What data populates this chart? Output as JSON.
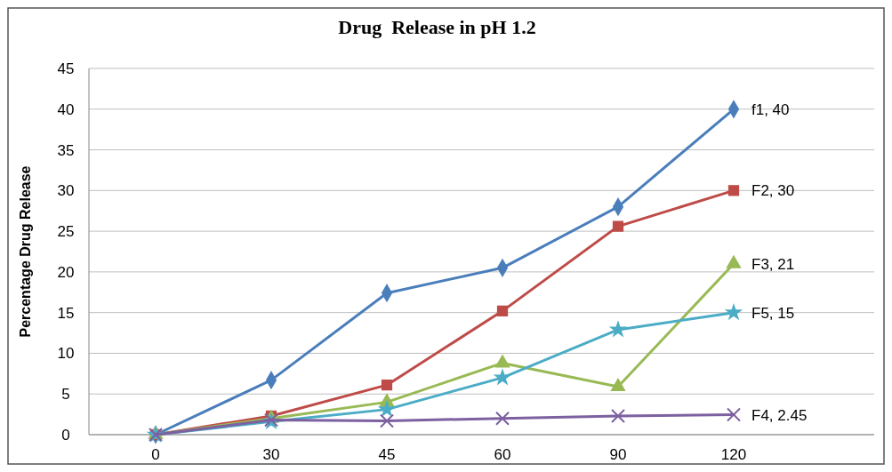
{
  "chart_data": {
    "type": "line",
    "title": "Drug  Release in pH 1.2",
    "ylabel": "Percentage Drug Release",
    "categories": [
      "0",
      "30",
      "45",
      "60",
      "90",
      "120"
    ],
    "ylim": [
      0,
      45
    ],
    "yticks": [
      0,
      5,
      10,
      15,
      20,
      25,
      30,
      35,
      40,
      45
    ],
    "grid": "y",
    "series": [
      {
        "color": "#4a7ebb",
        "marker": "diamond",
        "values": [
          0,
          6.7,
          17.4,
          20.5,
          28,
          40
        ],
        "value_labels": [
          null,
          null,
          null,
          null,
          null,
          "f1, 40"
        ]
      },
      {
        "color": "#be4b48",
        "marker": "square",
        "values": [
          0,
          2.3,
          6.1,
          15.2,
          25.6,
          30
        ],
        "value_labels": [
          null,
          null,
          null,
          null,
          null,
          "F2, 30"
        ]
      },
      {
        "color": "#98b954",
        "marker": "triangle",
        "values": [
          0,
          2,
          4,
          8.8,
          5.9,
          21
        ],
        "value_labels": [
          null,
          null,
          null,
          null,
          null,
          "F3, 21"
        ]
      },
      {
        "color": "#4bacc6",
        "marker": "star",
        "values": [
          0,
          1.6,
          3.1,
          7,
          12.9,
          15
        ],
        "value_labels": [
          null,
          null,
          null,
          null,
          null,
          "F5, 15"
        ]
      },
      {
        "color": "#7d60a0",
        "marker": "cross",
        "values": [
          0,
          1.8,
          1.7,
          2,
          2.3,
          2.45
        ],
        "value_labels": [
          null,
          null,
          null,
          null,
          null,
          "F4, 2.45"
        ]
      }
    ]
  }
}
